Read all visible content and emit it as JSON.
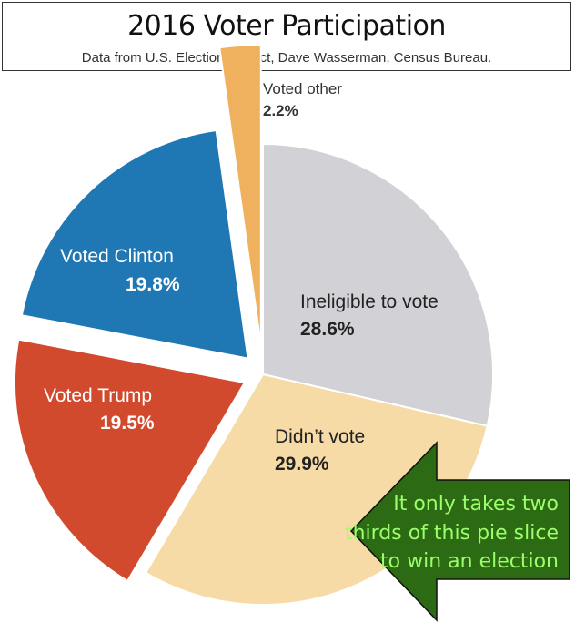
{
  "header": {
    "title": "2016 Voter Participation",
    "subtitle": "Data from U.S. Election Project, Dave Wasserman, Census Bureau."
  },
  "chart_data": {
    "type": "pie",
    "title": "2016 Voter Participation",
    "subtitle": "Data from U.S. Election Project, Dave Wasserman, Census Bureau.",
    "unit": "%",
    "slices": [
      {
        "key": "ineligible",
        "label": "Ineligible to vote",
        "value": 28.6,
        "value_label": "28.6%",
        "color": "#d1d1d6",
        "text_color": "#222222"
      },
      {
        "key": "didnt_vote",
        "label": "Didn’t vote",
        "value": 29.9,
        "value_label": "29.9%",
        "color": "#f7dba6",
        "text_color": "#222222"
      },
      {
        "key": "trump",
        "label": "Voted Trump",
        "value": 19.5,
        "value_label": "19.5%",
        "color": "#d24a2e",
        "text_color": "#ffffff"
      },
      {
        "key": "clinton",
        "label": "Voted Clinton",
        "value": 19.8,
        "value_label": "19.8%",
        "color": "#1f78b4",
        "text_color": "#ffffff"
      },
      {
        "key": "other",
        "label": "Voted other",
        "value": 2.2,
        "value_label": "2.2%",
        "color": "#efb15e",
        "text_color": "#333333"
      }
    ]
  },
  "callout": {
    "lines": [
      "It only takes two",
      "thirds of this pie slice",
      "to win  an election"
    ],
    "fill_color": "#2d6a14",
    "text_color": "#9aff6a"
  }
}
